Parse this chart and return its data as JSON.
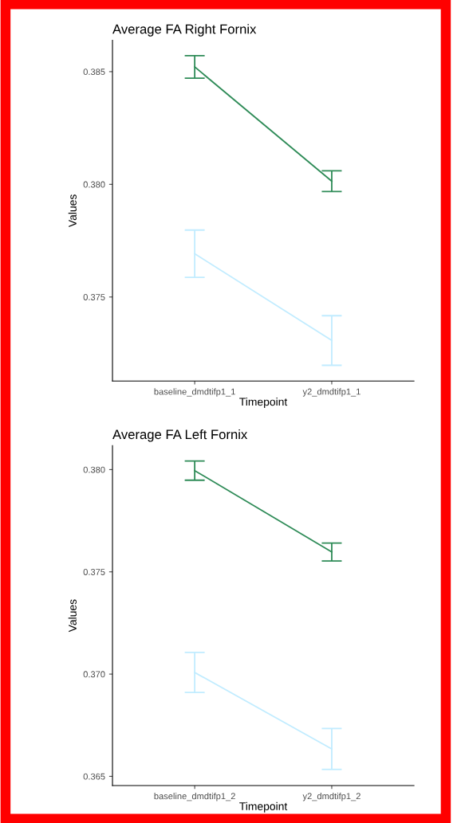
{
  "chart_data": [
    {
      "type": "line",
      "title": "Average FA Right Fornix",
      "xlabel": "Timepoint",
      "ylabel": "Values",
      "categories": [
        "baseline_dmdtifp1_1",
        "y2_dmdtifp1_1"
      ],
      "series": [
        {
          "color": "#2e8b57",
          "values": [
            0.38521,
            0.38014
          ],
          "errors": [
            0.0005,
            0.00046
          ]
        },
        {
          "color": "#c1ecff",
          "values": [
            0.37692,
            0.37307
          ],
          "errors": [
            0.00105,
            0.0011
          ]
        }
      ],
      "ylim": [
        0.37127,
        0.38639
      ],
      "yticks": [
        {
          "value": 0.375,
          "label": "0.375"
        },
        {
          "value": 0.38,
          "label": "0.380"
        },
        {
          "value": 0.385,
          "label": "0.385"
        }
      ],
      "grid": false,
      "marker": "none",
      "line_style": "solid"
    },
    {
      "type": "line",
      "title": "Average FA Left Fornix",
      "xlabel": "Timepoint",
      "ylabel": "Values",
      "categories": [
        "baseline_dmdtifp1_2",
        "y2_dmdtifp1_2"
      ],
      "series": [
        {
          "color": "#2e8b57",
          "values": [
            0.37995,
            0.37597
          ],
          "errors": [
            0.00047,
            0.00044
          ]
        },
        {
          "color": "#c1ecff",
          "values": [
            0.37008,
            0.36634
          ],
          "errors": [
            0.00098,
            0.001
          ]
        }
      ],
      "ylim": [
        0.36455,
        0.38117
      ],
      "yticks": [
        {
          "value": 0.365,
          "label": "0.365"
        },
        {
          "value": 0.37,
          "label": "0.370"
        },
        {
          "value": 0.375,
          "label": "0.375"
        },
        {
          "value": 0.38,
          "label": "0.380"
        }
      ],
      "grid": false,
      "marker": "none",
      "line_style": "solid"
    }
  ]
}
